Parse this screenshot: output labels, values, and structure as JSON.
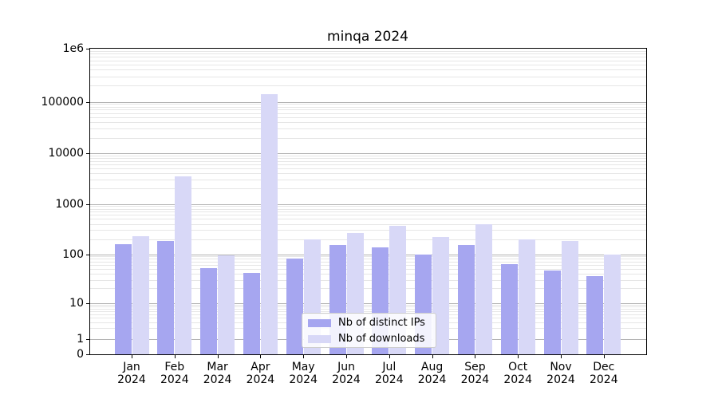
{
  "chart_data": {
    "type": "bar",
    "title": "minqa 2024",
    "categories": [
      "Jan 2024",
      "Feb 2024",
      "Mar 2024",
      "Apr 2024",
      "May 2024",
      "Jun 2024",
      "Jul 2024",
      "Aug 2024",
      "Sep 2024",
      "Oct 2024",
      "Nov 2024",
      "Dec 2024"
    ],
    "series": [
      {
        "name": "Nb of distinct IPs",
        "color": "#a6a6f0",
        "values": [
          160,
          182,
          52,
          42,
          80,
          150,
          136,
          100,
          150,
          63,
          46,
          36
        ]
      },
      {
        "name": "Nb of downloads",
        "color": "#d8d8f7",
        "values": [
          230,
          3500,
          93,
          140000,
          200,
          260,
          370,
          220,
          400,
          200,
          185,
          100
        ]
      }
    ],
    "y_axis": {
      "scale": "symlog",
      "ylim": [
        0,
        1000000
      ],
      "ticks": [
        {
          "value": 1000000,
          "label": "1e6"
        },
        {
          "value": 100000,
          "label": "100000"
        },
        {
          "value": 10000,
          "label": "10000"
        },
        {
          "value": 1000,
          "label": "1000"
        },
        {
          "value": 100,
          "label": "100"
        },
        {
          "value": 10,
          "label": "10"
        },
        {
          "value": 1,
          "label": "1"
        },
        {
          "value": 0,
          "label": "0"
        }
      ]
    },
    "grid": true,
    "legend_position": "lower center"
  }
}
